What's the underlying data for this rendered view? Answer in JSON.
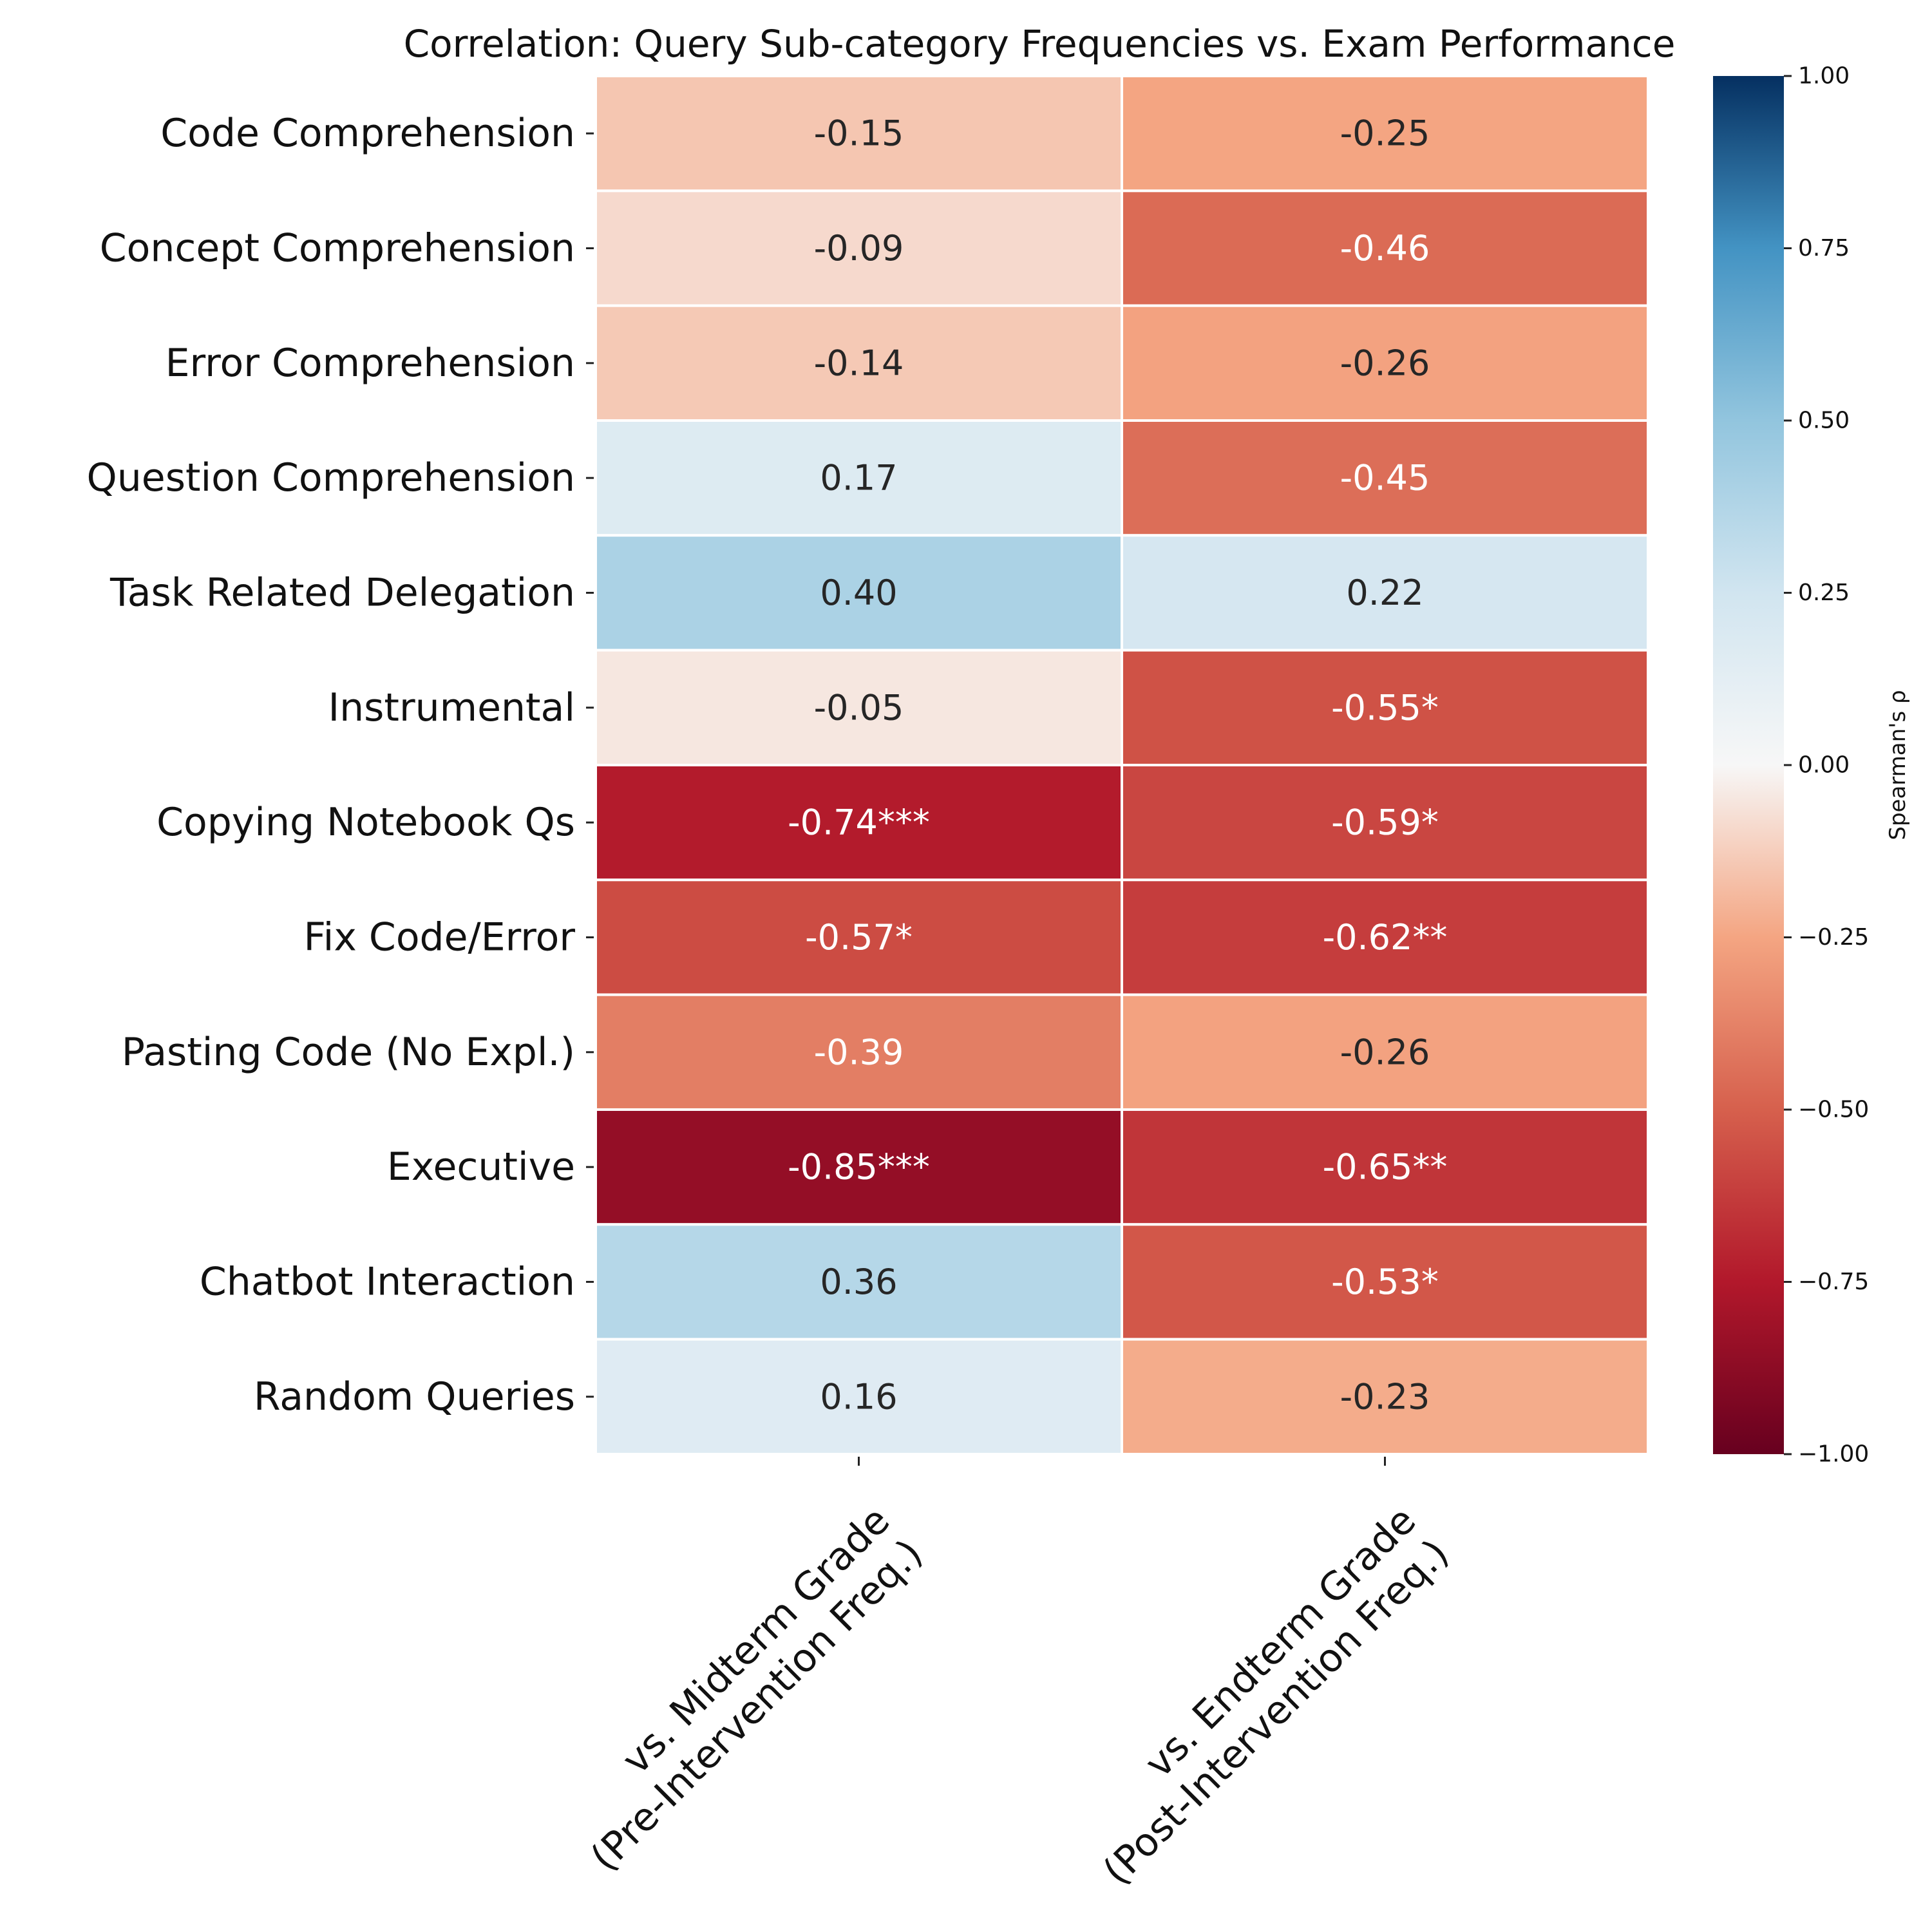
{
  "chart_data": {
    "type": "heatmap",
    "title": "Correlation: Query Sub-category Frequencies vs. Exam Performance",
    "rows": [
      "Code Comprehension",
      "Concept Comprehension",
      "Error Comprehension",
      "Question Comprehension",
      "Task Related Delegation",
      "Instrumental",
      "Copying Notebook Qs",
      "Fix Code/Error",
      "Pasting Code (No Expl.)",
      "Executive",
      "Chatbot Interaction",
      "Random Queries"
    ],
    "columns": [
      [
        "vs. Midterm Grade",
        "(Pre-Intervention Freq.)"
      ],
      [
        "vs. Endterm Grade",
        "(Post-Intervention Freq.)"
      ]
    ],
    "values": [
      [
        -0.15,
        -0.25
      ],
      [
        -0.09,
        -0.46
      ],
      [
        -0.14,
        -0.26
      ],
      [
        0.17,
        -0.45
      ],
      [
        0.4,
        0.22
      ],
      [
        -0.05,
        -0.55
      ],
      [
        -0.74,
        -0.59
      ],
      [
        -0.57,
        -0.62
      ],
      [
        -0.39,
        -0.26
      ],
      [
        -0.85,
        -0.65
      ],
      [
        0.36,
        -0.53
      ],
      [
        0.16,
        -0.23
      ]
    ],
    "annotations": [
      [
        "-0.15",
        "-0.25"
      ],
      [
        "-0.09",
        "-0.46"
      ],
      [
        "-0.14",
        "-0.26"
      ],
      [
        "0.17",
        "-0.45"
      ],
      [
        "0.40",
        "0.22"
      ],
      [
        "-0.05",
        "-0.55*"
      ],
      [
        "-0.74***",
        "-0.59*"
      ],
      [
        "-0.57*",
        "-0.62**"
      ],
      [
        "-0.39",
        "-0.26"
      ],
      [
        "-0.85***",
        "-0.65**"
      ],
      [
        "0.36",
        "-0.53*"
      ],
      [
        "0.16",
        "-0.23"
      ]
    ],
    "colormap": "RdBu",
    "vmin": -1.0,
    "vmax": 1.0,
    "colorbar": {
      "label": "Spearman's ρ",
      "ticks": [
        1.0,
        0.75,
        0.5,
        0.25,
        0.0,
        -0.25,
        -0.5,
        -0.75,
        -1.0
      ],
      "tick_labels": [
        "1.00",
        "0.75",
        "0.50",
        "0.25",
        "0.00",
        "−0.25",
        "−0.50",
        "−0.75",
        "−1.00"
      ]
    },
    "colormap_stops": [
      [
        -1.0,
        "#67001f"
      ],
      [
        -0.75,
        "#b2182b"
      ],
      [
        -0.5,
        "#d6604d"
      ],
      [
        -0.25,
        "#f4a582"
      ],
      [
        0.0,
        "#f7f7f7"
      ],
      [
        0.25,
        "#d1e5f0"
      ],
      [
        0.5,
        "#92c5de"
      ],
      [
        0.75,
        "#4393c3"
      ],
      [
        1.0,
        "#053061"
      ]
    ]
  }
}
